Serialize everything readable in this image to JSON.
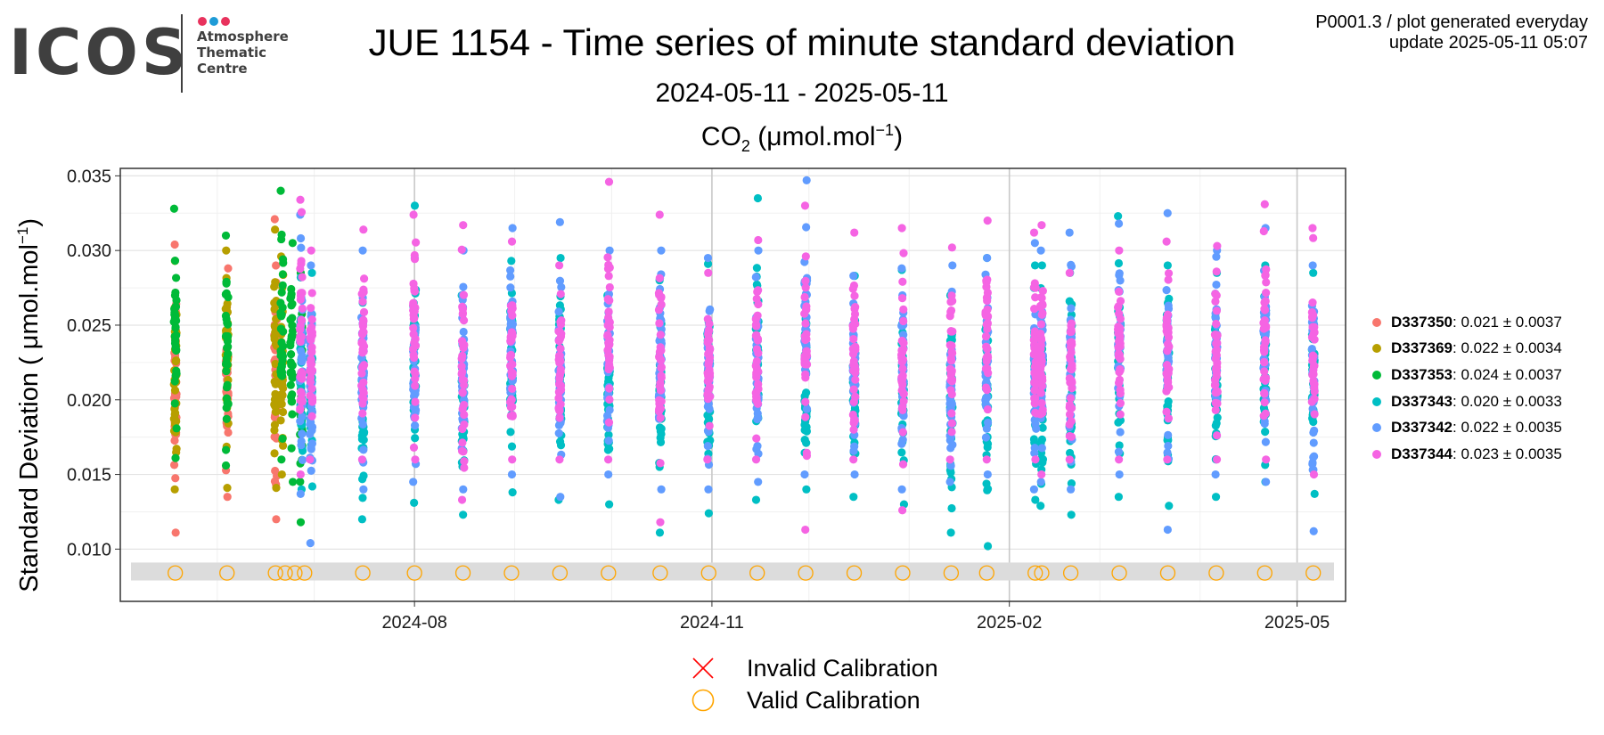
{
  "logo": {
    "wordmark": "ICOS",
    "subtitle_lines": [
      "Atmosphere",
      "Thematic",
      "Centre"
    ],
    "dot_colors": [
      "#e8325d",
      "#1e9bd7",
      "#e8325d"
    ]
  },
  "header": {
    "title": "JUE 1154 - Time series of minute standard deviation",
    "period": "2024-05-11 - 2025-05-11",
    "unit_species": "CO",
    "unit_species_sub": "2",
    "unit_open": " (μmol.mol",
    "unit_sup": "−1",
    "unit_close": ")",
    "meta_line1": "P0001.3 / plot generated everyday",
    "meta_line2": "update  2025-05-11 05:07"
  },
  "axis": {
    "ylabel_main": "Standard Deviation ( μmol.mol",
    "ylabel_sup": "−1",
    "ylabel_close": ")"
  },
  "legend": [
    {
      "name": "D337350",
      "stats": ": 0.021 ± 0.0037",
      "color": "#f8766d"
    },
    {
      "name": "D337369",
      "stats": ": 0.022 ± 0.0034",
      "color": "#b79f00"
    },
    {
      "name": "D337353",
      "stats": ": 0.024 ± 0.0037",
      "color": "#00ba38"
    },
    {
      "name": "D337343",
      "stats": ": 0.020 ± 0.0033",
      "color": "#00bfc4"
    },
    {
      "name": "D337342",
      "stats": ": 0.022 ± 0.0035",
      "color": "#619cff"
    },
    {
      "name": "D337344",
      "stats": ": 0.023 ± 0.0035",
      "color": "#f564e3"
    }
  ],
  "calibration_legend": {
    "invalid_label": "Invalid Calibration",
    "valid_label": "Valid Calibration",
    "invalid_color": "#ff0000",
    "valid_color": "#ffa500"
  },
  "chart_data": {
    "type": "scatter",
    "xlabel": "",
    "ylabel": "Standard Deviation ( μmol.mol−1)",
    "ylim": [
      0.0065,
      0.0355
    ],
    "xlim": [
      "2024-05-02",
      "2025-05-16"
    ],
    "x_ticks": [
      "2024-08-01",
      "2024-11-01",
      "2025-02-01",
      "2025-05-01"
    ],
    "x_tick_labels": [
      "2024-08",
      "2024-11",
      "2025-02",
      "2025-05"
    ],
    "y_ticks": [
      0.01,
      0.015,
      0.02,
      0.025,
      0.03,
      0.035
    ],
    "y_tick_labels": [
      "0.010",
      "0.015",
      "0.020",
      "0.025",
      "0.030",
      "0.035"
    ],
    "grid": true,
    "legend_position": "right",
    "calibration_band": [
      0.0079,
      0.0091
    ],
    "valid_calibrations": {
      "y": 0.0084,
      "dates": [
        "2024-05-19",
        "2024-06-04",
        "2024-06-19",
        "2024-06-22",
        "2024-06-25",
        "2024-06-28",
        "2024-07-16",
        "2024-08-01",
        "2024-08-16",
        "2024-08-31",
        "2024-09-15",
        "2024-09-30",
        "2024-10-16",
        "2024-10-31",
        "2024-11-15",
        "2024-11-30",
        "2024-12-15",
        "2024-12-30",
        "2025-01-14",
        "2025-01-25",
        "2025-02-09",
        "2025-02-11",
        "2025-02-20",
        "2025-03-07",
        "2025-03-22",
        "2025-04-06",
        "2025-04-21",
        "2025-05-06"
      ]
    },
    "invalid_calibrations": [],
    "series": [
      {
        "name": "D337350",
        "color": "#f8766d",
        "clusters": [
          {
            "date": "2024-05-19",
            "min": 0.0111,
            "max": 0.0304
          },
          {
            "date": "2024-06-04",
            "min": 0.0135,
            "max": 0.0288
          },
          {
            "date": "2024-06-19",
            "min": 0.012,
            "max": 0.0321
          }
        ]
      },
      {
        "name": "D337369",
        "color": "#b79f00",
        "clusters": [
          {
            "date": "2024-05-19",
            "min": 0.014,
            "max": 0.0293
          },
          {
            "date": "2024-06-04",
            "min": 0.0141,
            "max": 0.03
          },
          {
            "date": "2024-06-19",
            "min": 0.0141,
            "max": 0.0314
          },
          {
            "date": "2024-06-21",
            "min": 0.015,
            "max": 0.0296
          }
        ]
      },
      {
        "name": "D337353",
        "color": "#00ba38",
        "clusters": [
          {
            "date": "2024-05-19",
            "min": 0.0161,
            "max": 0.0328
          },
          {
            "date": "2024-06-04",
            "min": 0.0156,
            "max": 0.031
          },
          {
            "date": "2024-06-21",
            "min": 0.016,
            "max": 0.034
          },
          {
            "date": "2024-06-24",
            "min": 0.0145,
            "max": 0.0305
          },
          {
            "date": "2024-06-27",
            "min": 0.0118,
            "max": 0.0285
          }
        ]
      },
      {
        "name": "D337343",
        "color": "#00bfc4",
        "clusters": [
          {
            "date": "2024-06-27",
            "min": 0.014,
            "max": 0.0282
          },
          {
            "date": "2024-06-30",
            "min": 0.0142,
            "max": 0.0285
          },
          {
            "date": "2024-07-16",
            "min": 0.012,
            "max": 0.0265
          },
          {
            "date": "2024-08-01",
            "min": 0.0131,
            "max": 0.033
          },
          {
            "date": "2024-08-16",
            "min": 0.0123,
            "max": 0.027
          },
          {
            "date": "2024-08-31",
            "min": 0.0138,
            "max": 0.0293
          },
          {
            "date": "2024-09-15",
            "min": 0.0133,
            "max": 0.0295
          },
          {
            "date": "2024-09-30",
            "min": 0.013,
            "max": 0.027
          },
          {
            "date": "2024-10-16",
            "min": 0.0111,
            "max": 0.028
          },
          {
            "date": "2024-10-31",
            "min": 0.0124,
            "max": 0.0291
          },
          {
            "date": "2024-11-15",
            "min": 0.0133,
            "max": 0.0335
          },
          {
            "date": "2024-11-30",
            "min": 0.014,
            "max": 0.028
          },
          {
            "date": "2024-12-15",
            "min": 0.0135,
            "max": 0.0283
          },
          {
            "date": "2024-12-30",
            "min": 0.013,
            "max": 0.0287
          },
          {
            "date": "2025-01-14",
            "min": 0.0111,
            "max": 0.027
          },
          {
            "date": "2025-01-25",
            "min": 0.0102,
            "max": 0.0295
          },
          {
            "date": "2025-02-09",
            "min": 0.0133,
            "max": 0.029
          },
          {
            "date": "2025-02-11",
            "min": 0.0129,
            "max": 0.029
          },
          {
            "date": "2025-02-20",
            "min": 0.0123,
            "max": 0.0285
          },
          {
            "date": "2025-03-07",
            "min": 0.0135,
            "max": 0.0323
          },
          {
            "date": "2025-03-22",
            "min": 0.0129,
            "max": 0.029
          },
          {
            "date": "2025-04-06",
            "min": 0.0135,
            "max": 0.0285
          },
          {
            "date": "2025-04-21",
            "min": 0.0145,
            "max": 0.029
          },
          {
            "date": "2025-05-06",
            "min": 0.0137,
            "max": 0.0285
          }
        ]
      },
      {
        "name": "D337342",
        "color": "#619cff",
        "clusters": [
          {
            "date": "2024-06-27",
            "min": 0.0137,
            "max": 0.0324
          },
          {
            "date": "2024-06-30",
            "min": 0.0104,
            "max": 0.029
          },
          {
            "date": "2024-07-16",
            "min": 0.014,
            "max": 0.03
          },
          {
            "date": "2024-08-01",
            "min": 0.0145,
            "max": 0.0295
          },
          {
            "date": "2024-08-16",
            "min": 0.014,
            "max": 0.03
          },
          {
            "date": "2024-08-31",
            "min": 0.015,
            "max": 0.0315
          },
          {
            "date": "2024-09-15",
            "min": 0.0135,
            "max": 0.0319
          },
          {
            "date": "2024-09-30",
            "min": 0.015,
            "max": 0.03
          },
          {
            "date": "2024-10-16",
            "min": 0.014,
            "max": 0.03
          },
          {
            "date": "2024-10-31",
            "min": 0.014,
            "max": 0.0295
          },
          {
            "date": "2024-11-15",
            "min": 0.0145,
            "max": 0.03
          },
          {
            "date": "2024-11-30",
            "min": 0.015,
            "max": 0.0347
          },
          {
            "date": "2024-12-15",
            "min": 0.015,
            "max": 0.0283
          },
          {
            "date": "2024-12-30",
            "min": 0.014,
            "max": 0.0288
          },
          {
            "date": "2025-01-14",
            "min": 0.0145,
            "max": 0.029
          },
          {
            "date": "2025-01-25",
            "min": 0.015,
            "max": 0.0295
          },
          {
            "date": "2025-02-09",
            "min": 0.014,
            "max": 0.0305
          },
          {
            "date": "2025-02-11",
            "min": 0.0145,
            "max": 0.03
          },
          {
            "date": "2025-02-20",
            "min": 0.014,
            "max": 0.0312
          },
          {
            "date": "2025-03-07",
            "min": 0.015,
            "max": 0.0318
          },
          {
            "date": "2025-03-22",
            "min": 0.0113,
            "max": 0.0325
          },
          {
            "date": "2025-04-06",
            "min": 0.015,
            "max": 0.03
          },
          {
            "date": "2025-04-21",
            "min": 0.0145,
            "max": 0.0315
          },
          {
            "date": "2025-05-06",
            "min": 0.0112,
            "max": 0.029
          }
        ]
      },
      {
        "name": "D337344",
        "color": "#f564e3",
        "clusters": [
          {
            "date": "2024-06-27",
            "min": 0.015,
            "max": 0.0334
          },
          {
            "date": "2024-06-30",
            "min": 0.016,
            "max": 0.03
          },
          {
            "date": "2024-07-16",
            "min": 0.016,
            "max": 0.0314
          },
          {
            "date": "2024-08-01",
            "min": 0.016,
            "max": 0.0324
          },
          {
            "date": "2024-08-16",
            "min": 0.0133,
            "max": 0.0317
          },
          {
            "date": "2024-08-31",
            "min": 0.016,
            "max": 0.0306
          },
          {
            "date": "2024-09-15",
            "min": 0.016,
            "max": 0.029
          },
          {
            "date": "2024-09-30",
            "min": 0.016,
            "max": 0.0346
          },
          {
            "date": "2024-10-16",
            "min": 0.0118,
            "max": 0.0324
          },
          {
            "date": "2024-10-31",
            "min": 0.016,
            "max": 0.0285
          },
          {
            "date": "2024-11-15",
            "min": 0.016,
            "max": 0.0307
          },
          {
            "date": "2024-11-30",
            "min": 0.0113,
            "max": 0.033
          },
          {
            "date": "2024-12-15",
            "min": 0.016,
            "max": 0.0312
          },
          {
            "date": "2024-12-30",
            "min": 0.0126,
            "max": 0.0315
          },
          {
            "date": "2025-01-14",
            "min": 0.016,
            "max": 0.0302
          },
          {
            "date": "2025-01-25",
            "min": 0.016,
            "max": 0.032
          },
          {
            "date": "2025-02-09",
            "min": 0.016,
            "max": 0.0312
          },
          {
            "date": "2025-02-11",
            "min": 0.015,
            "max": 0.0317
          },
          {
            "date": "2025-02-20",
            "min": 0.016,
            "max": 0.0285
          },
          {
            "date": "2025-03-07",
            "min": 0.016,
            "max": 0.03
          },
          {
            "date": "2025-03-22",
            "min": 0.016,
            "max": 0.0306
          },
          {
            "date": "2025-04-06",
            "min": 0.016,
            "max": 0.0303
          },
          {
            "date": "2025-04-21",
            "min": 0.016,
            "max": 0.0331
          },
          {
            "date": "2025-05-06",
            "min": 0.015,
            "max": 0.0315
          }
        ]
      }
    ]
  }
}
